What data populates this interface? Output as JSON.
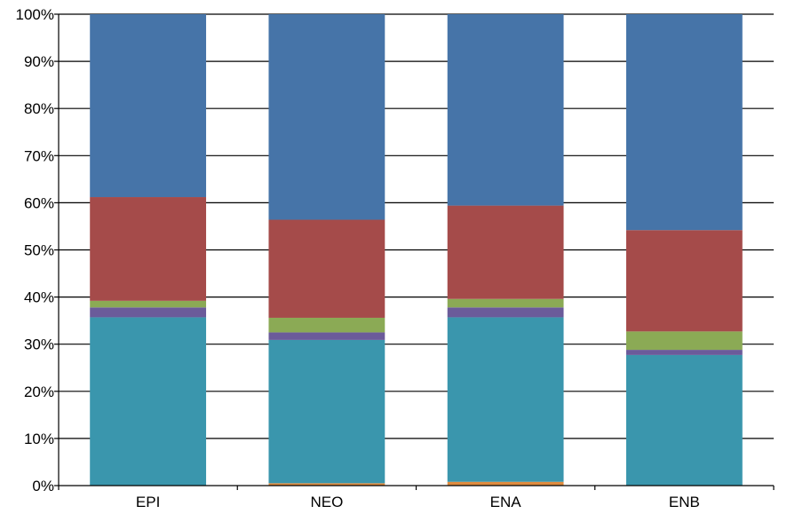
{
  "chart_data": {
    "type": "bar",
    "stacked": true,
    "percent": true,
    "categories": [
      "EPI",
      "NEO",
      "ENA",
      "ENB"
    ],
    "ylim": [
      0,
      100
    ],
    "yticks": [
      "0%",
      "10%",
      "20%",
      "30%",
      "40%",
      "50%",
      "60%",
      "70%",
      "80%",
      "90%",
      "100%"
    ],
    "grid": true,
    "legend": "none",
    "series": [
      {
        "color": "#E08B3E",
        "values": [
          0.0,
          0.5,
          0.8,
          0.0
        ]
      },
      {
        "color": "#3A96AD",
        "values": [
          35.7,
          30.4,
          34.9,
          27.7
        ]
      },
      {
        "color": "#6B5B9A",
        "values": [
          2.1,
          1.6,
          2.1,
          1.1
        ]
      },
      {
        "color": "#8BAA55",
        "values": [
          1.4,
          3.1,
          1.8,
          3.9
        ]
      },
      {
        "color": "#A54B4A",
        "values": [
          22.0,
          20.8,
          19.8,
          21.5
        ]
      },
      {
        "color": "#4674A8",
        "values": [
          38.8,
          43.6,
          40.6,
          45.8
        ]
      }
    ]
  }
}
